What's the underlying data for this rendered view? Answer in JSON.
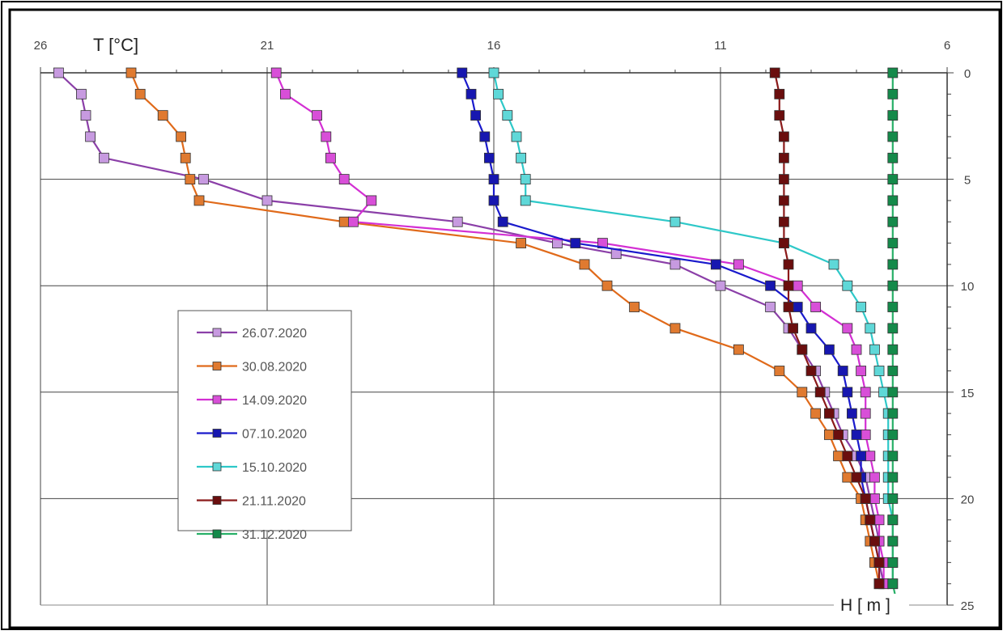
{
  "chart_data": {
    "type": "line",
    "title": "",
    "xlabel": "T [°C]",
    "ylabel": "H [ m ]",
    "x_axis": {
      "position": "top",
      "reversed": true,
      "min": 6,
      "max": 26,
      "ticks": [
        26,
        21,
        16,
        11,
        6
      ],
      "tick_labels": [
        "26",
        "21",
        "16",
        "11",
        "6"
      ]
    },
    "y_axis": {
      "position": "right",
      "reversed": true,
      "min": 0,
      "max": 25,
      "ticks": [
        0,
        5,
        10,
        15,
        20,
        25
      ],
      "tick_labels": [
        "0",
        "5",
        "10",
        "15",
        "20",
        "25"
      ]
    },
    "grid": true,
    "legend_position": "center-left",
    "series": [
      {
        "name": "26.07.2020",
        "color": "#8B3FA8",
        "marker": "#C79AE0",
        "points": [
          [
            25.6,
            0
          ],
          [
            25.1,
            1
          ],
          [
            25.0,
            2
          ],
          [
            24.9,
            3
          ],
          [
            24.6,
            4
          ],
          [
            22.4,
            5
          ],
          [
            21.0,
            6
          ],
          [
            16.8,
            7
          ],
          [
            14.6,
            8
          ],
          [
            13.3,
            8.5
          ],
          [
            12.0,
            9
          ],
          [
            11.0,
            10
          ],
          [
            9.9,
            11
          ],
          [
            9.5,
            12
          ],
          [
            9.2,
            13
          ],
          [
            8.9,
            14
          ],
          [
            8.7,
            15
          ],
          [
            8.5,
            16
          ],
          [
            8.3,
            17
          ],
          [
            8.0,
            18
          ],
          [
            7.8,
            19
          ],
          [
            7.7,
            20
          ],
          [
            7.6,
            21
          ],
          [
            7.5,
            22
          ],
          [
            7.5,
            23
          ],
          [
            7.4,
            24
          ]
        ]
      },
      {
        "name": "30.08.2020",
        "color": "#E06A1A",
        "marker": "#E07A30",
        "points": [
          [
            24.0,
            0
          ],
          [
            23.8,
            1
          ],
          [
            23.3,
            2
          ],
          [
            22.9,
            3
          ],
          [
            22.8,
            4
          ],
          [
            22.7,
            5
          ],
          [
            22.5,
            6
          ],
          [
            19.3,
            7
          ],
          [
            15.4,
            8
          ],
          [
            14.0,
            9
          ],
          [
            13.5,
            10
          ],
          [
            12.9,
            11
          ],
          [
            12.0,
            12
          ],
          [
            10.6,
            13
          ],
          [
            9.7,
            14
          ],
          [
            9.2,
            15
          ],
          [
            8.9,
            16
          ],
          [
            8.6,
            17
          ],
          [
            8.4,
            18
          ],
          [
            8.2,
            19
          ],
          [
            7.9,
            20
          ],
          [
            7.8,
            21
          ],
          [
            7.7,
            22
          ],
          [
            7.6,
            23
          ],
          [
            7.5,
            24
          ]
        ]
      },
      {
        "name": "14.09.2020",
        "color": "#D32FD3",
        "marker": "#D84FD8",
        "points": [
          [
            20.8,
            0
          ],
          [
            20.6,
            1
          ],
          [
            19.9,
            2
          ],
          [
            19.7,
            3
          ],
          [
            19.6,
            4
          ],
          [
            19.3,
            5
          ],
          [
            18.7,
            6
          ],
          [
            19.1,
            7
          ],
          [
            13.6,
            8
          ],
          [
            10.6,
            9
          ],
          [
            9.3,
            10
          ],
          [
            8.9,
            11
          ],
          [
            8.2,
            12
          ],
          [
            8.0,
            13
          ],
          [
            7.9,
            14
          ],
          [
            7.8,
            15
          ],
          [
            7.8,
            16
          ],
          [
            7.8,
            17
          ],
          [
            7.7,
            18
          ],
          [
            7.6,
            19
          ],
          [
            7.6,
            20
          ],
          [
            7.5,
            21
          ],
          [
            7.5,
            22
          ],
          [
            7.4,
            23
          ],
          [
            7.4,
            24
          ]
        ]
      },
      {
        "name": "07.10.2020",
        "color": "#1A1ACC",
        "marker": "#1717B0",
        "points": [
          [
            16.7,
            0
          ],
          [
            16.5,
            1
          ],
          [
            16.4,
            2
          ],
          [
            16.2,
            3
          ],
          [
            16.1,
            4
          ],
          [
            16.0,
            5
          ],
          [
            16.0,
            6
          ],
          [
            15.8,
            7
          ],
          [
            14.2,
            8
          ],
          [
            11.1,
            9
          ],
          [
            9.9,
            10
          ],
          [
            9.3,
            11
          ],
          [
            9.0,
            12
          ],
          [
            8.6,
            13
          ],
          [
            8.3,
            14
          ],
          [
            8.2,
            15
          ],
          [
            8.1,
            16
          ],
          [
            8.0,
            17
          ],
          [
            7.9,
            18
          ],
          [
            7.9,
            19
          ],
          [
            7.8,
            20
          ],
          [
            7.7,
            21
          ],
          [
            7.6,
            22
          ],
          [
            7.5,
            23
          ],
          [
            7.5,
            24
          ]
        ]
      },
      {
        "name": "15.10.2020",
        "color": "#2EC8C8",
        "marker": "#5FD8D8",
        "points": [
          [
            16.0,
            0
          ],
          [
            15.9,
            1
          ],
          [
            15.7,
            2
          ],
          [
            15.5,
            3
          ],
          [
            15.4,
            4
          ],
          [
            15.3,
            5
          ],
          [
            15.3,
            6
          ],
          [
            12.0,
            7
          ],
          [
            9.6,
            8
          ],
          [
            8.5,
            9
          ],
          [
            8.2,
            10
          ],
          [
            7.9,
            11
          ],
          [
            7.7,
            12
          ],
          [
            7.6,
            13
          ],
          [
            7.5,
            14
          ],
          [
            7.4,
            15
          ],
          [
            7.3,
            16
          ],
          [
            7.3,
            17
          ],
          [
            7.3,
            18
          ],
          [
            7.3,
            19
          ],
          [
            7.3,
            20
          ],
          [
            7.2,
            21
          ],
          [
            7.2,
            22
          ],
          [
            7.2,
            23
          ],
          [
            7.2,
            24
          ]
        ]
      },
      {
        "name": "21.11.2020",
        "color": "#8B1A1A",
        "marker": "#6A0E0E",
        "points": [
          [
            9.8,
            0
          ],
          [
            9.7,
            1
          ],
          [
            9.7,
            2
          ],
          [
            9.6,
            3
          ],
          [
            9.6,
            4
          ],
          [
            9.6,
            5
          ],
          [
            9.6,
            6
          ],
          [
            9.6,
            7
          ],
          [
            9.6,
            8
          ],
          [
            9.5,
            9
          ],
          [
            9.5,
            10
          ],
          [
            9.5,
            11
          ],
          [
            9.4,
            12
          ],
          [
            9.2,
            13
          ],
          [
            9.0,
            14
          ],
          [
            8.8,
            15
          ],
          [
            8.6,
            16
          ],
          [
            8.4,
            17
          ],
          [
            8.2,
            18
          ],
          [
            8.0,
            19
          ],
          [
            7.8,
            20
          ],
          [
            7.7,
            21
          ],
          [
            7.6,
            22
          ],
          [
            7.5,
            23
          ],
          [
            7.5,
            24
          ]
        ]
      },
      {
        "name": "31.12.2020",
        "color": "#28B068",
        "marker": "#148A4A",
        "points": [
          [
            7.2,
            0
          ],
          [
            7.2,
            1
          ],
          [
            7.2,
            2
          ],
          [
            7.2,
            3
          ],
          [
            7.2,
            4
          ],
          [
            7.2,
            5
          ],
          [
            7.2,
            6
          ],
          [
            7.2,
            7
          ],
          [
            7.2,
            8
          ],
          [
            7.2,
            9
          ],
          [
            7.2,
            10
          ],
          [
            7.2,
            11
          ],
          [
            7.2,
            12
          ],
          [
            7.2,
            13
          ],
          [
            7.2,
            14
          ],
          [
            7.2,
            15
          ],
          [
            7.2,
            16
          ],
          [
            7.2,
            17
          ],
          [
            7.2,
            18
          ],
          [
            7.2,
            19
          ],
          [
            7.2,
            20
          ],
          [
            7.2,
            21
          ],
          [
            7.2,
            22
          ],
          [
            7.2,
            23
          ],
          [
            7.2,
            24
          ],
          [
            7.1,
            25
          ]
        ]
      }
    ]
  }
}
